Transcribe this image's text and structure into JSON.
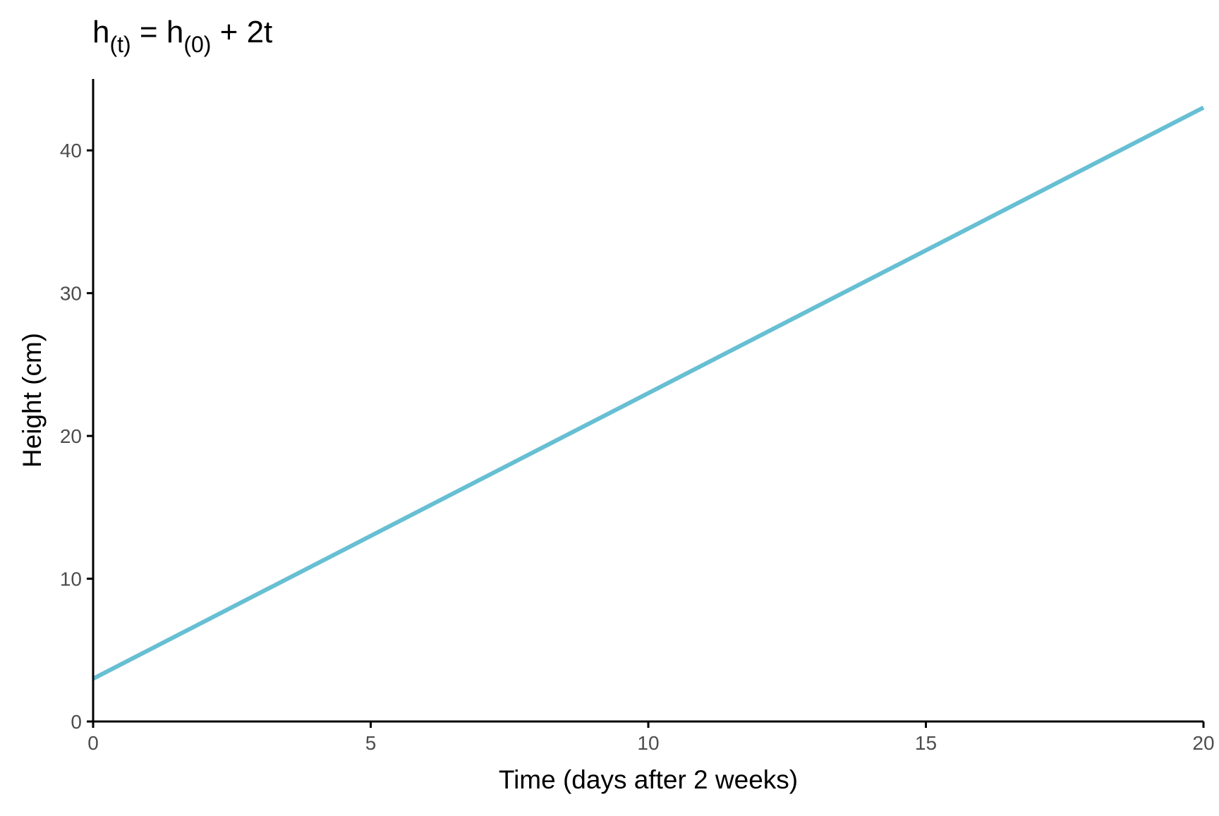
{
  "chart_data": {
    "type": "line",
    "title": {
      "text": "h(t) = h(0) + 2t",
      "base1": "h",
      "sub1": "(t)",
      "mid": " = h",
      "sub2": "(0)",
      "tail": " + 2t"
    },
    "xlabel": "Time (days after 2 weeks)",
    "ylabel": "Height (cm)",
    "xlim": [
      0,
      20
    ],
    "ylim": [
      0,
      45
    ],
    "x_ticks": [
      0,
      5,
      10,
      15,
      20
    ],
    "y_ticks": [
      0,
      10,
      20,
      30,
      40
    ],
    "grid": false,
    "series": [
      {
        "x": [
          0,
          20
        ],
        "y": [
          3,
          43
        ],
        "color": "#67bfd3"
      }
    ],
    "colors": {
      "axis": "#000000",
      "tick_text": "#4d4d4d",
      "line": "#67bfd3"
    }
  }
}
